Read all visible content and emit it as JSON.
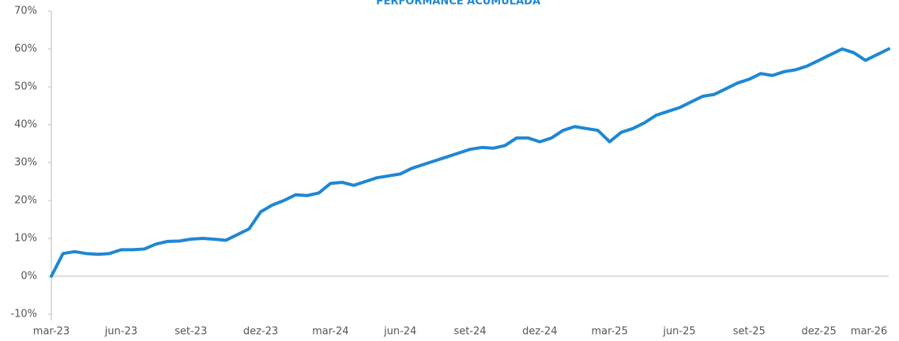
{
  "chart_data": {
    "type": "line",
    "title": "PERFORMANCE ACUMULADA",
    "categories": [
      "mar-23",
      null,
      null,
      null,
      null,
      null,
      "jun-23",
      null,
      null,
      null,
      null,
      null,
      "set-23",
      null,
      null,
      null,
      null,
      null,
      "dez-23",
      null,
      null,
      null,
      null,
      null,
      "mar-24",
      null,
      null,
      null,
      null,
      null,
      "jun-24",
      null,
      null,
      null,
      null,
      null,
      "set-24",
      null,
      null,
      null,
      null,
      null,
      "dez-24",
      null,
      null,
      null,
      null,
      null,
      "mar-25",
      null,
      null,
      null,
      null,
      null,
      "jun-25",
      null,
      null,
      null,
      null,
      null,
      "set-25",
      null,
      null,
      null,
      null,
      null,
      "dez-25",
      null,
      null,
      null,
      null,
      null,
      "mar-26"
    ],
    "series": [
      {
        "name": "Performance",
        "color": "#1f87d2",
        "values": [
          0,
          6,
          6.5,
          6,
          5.8,
          6,
          7,
          7,
          7.2,
          8.5,
          9.2,
          9.3,
          9.8,
          10,
          9.8,
          9.5,
          11,
          12.5,
          17,
          18.8,
          20,
          21.5,
          21.3,
          22,
          24.5,
          24.8,
          24,
          25,
          26,
          26.5,
          27,
          28.5,
          29.5,
          30.5,
          31.5,
          32.5,
          33.5,
          34,
          33.8,
          34.5,
          36.5,
          36.5,
          35.5,
          36.5,
          38.5,
          39.5,
          39,
          38.5,
          35.5,
          38,
          39,
          40.5,
          42.5,
          43.5,
          44.5,
          46,
          47.5,
          48,
          49.5,
          51,
          52,
          53.5,
          53,
          54,
          54.5,
          55.5,
          57,
          58.5,
          60,
          59,
          57,
          58.5,
          60
        ]
      }
    ],
    "ylim": [
      -10,
      70
    ],
    "yticks": [
      {
        "value": -10,
        "label": "-10%"
      },
      {
        "value": 0,
        "label": "0%"
      },
      {
        "value": 10,
        "label": "10%"
      },
      {
        "value": 20,
        "label": "20%"
      },
      {
        "value": 30,
        "label": "30%"
      },
      {
        "value": 40,
        "label": "40%"
      },
      {
        "value": 50,
        "label": "50%"
      },
      {
        "value": 60,
        "label": "60%"
      },
      {
        "value": 70,
        "label": "70%"
      }
    ],
    "grid": false
  }
}
